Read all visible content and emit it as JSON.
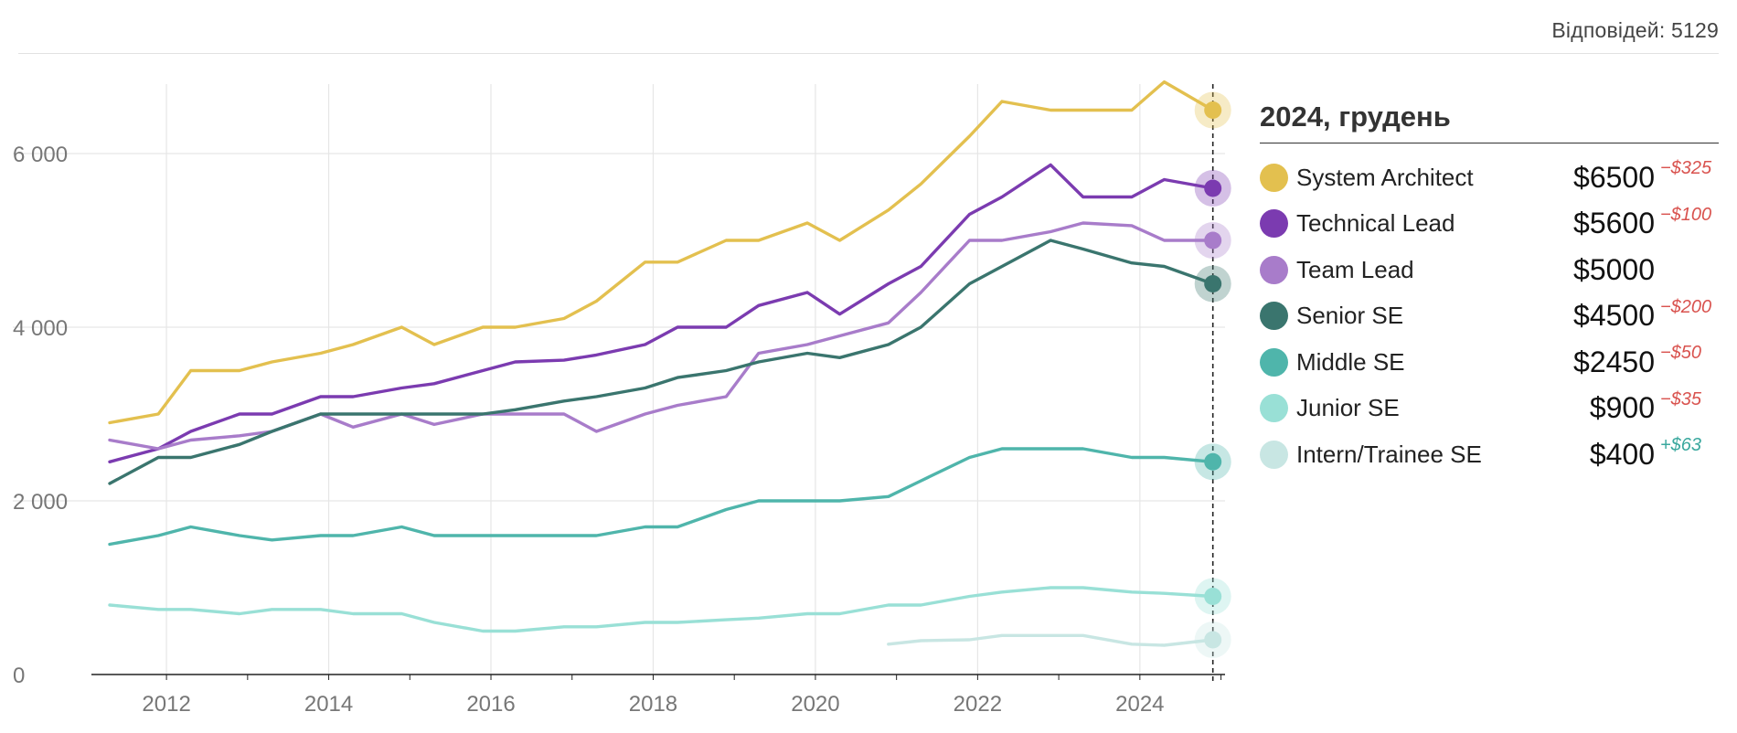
{
  "header": {
    "responses": "Відповідей: 5129"
  },
  "legend": {
    "title": "2024, грудень",
    "items": [
      {
        "name": "System Architect",
        "value": "$6500",
        "delta": "−$325",
        "color": "#e3c04f",
        "delta_color": "#d9534f"
      },
      {
        "name": "Technical Lead",
        "value": "$5600",
        "delta": "−$100",
        "color": "#7b3bb0",
        "delta_color": "#d9534f"
      },
      {
        "name": "Team Lead",
        "value": "$5000",
        "delta": "",
        "color": "#a87cca",
        "delta_color": "#d9534f"
      },
      {
        "name": "Senior SE",
        "value": "$4500",
        "delta": "−$200",
        "color": "#3a756e",
        "delta_color": "#d9534f"
      },
      {
        "name": "Middle SE",
        "value": "$2450",
        "delta": "−$50",
        "color": "#4fb5ab",
        "delta_color": "#d9534f"
      },
      {
        "name": "Junior SE",
        "value": "$900",
        "delta": "−$35",
        "color": "#99e0d6",
        "delta_color": "#d9534f"
      },
      {
        "name": "Intern/Trainee SE",
        "value": "$400",
        "delta": "+$63",
        "color": "#c8e6e3",
        "delta_color": "#3aa89e"
      }
    ]
  },
  "chart_data": {
    "type": "line",
    "title": "",
    "xlabel": "",
    "ylabel": "",
    "xlim": [
      2011.3,
      2025.05
    ],
    "ylim": [
      0,
      6800
    ],
    "x_ticks": [
      2012,
      2014,
      2016,
      2018,
      2020,
      2022,
      2024
    ],
    "x_tick_labels": [
      "2012",
      "2014",
      "2016",
      "2018",
      "2020",
      "2022",
      "2024"
    ],
    "y_ticks": [
      0,
      2000,
      4000,
      6000
    ],
    "y_tick_labels": [
      "0",
      "2 000",
      "4 000",
      "6 000"
    ],
    "grid": true,
    "legend_position": "right",
    "marker_x": 2024.9,
    "series": [
      {
        "name": "System Architect",
        "color": "#e3c04f",
        "x": [
          2011.3,
          2011.9,
          2012.3,
          2012.9,
          2013.3,
          2013.9,
          2014.3,
          2014.9,
          2015.3,
          2015.9,
          2016.3,
          2016.9,
          2017.3,
          2017.9,
          2018.3,
          2018.9,
          2019.3,
          2019.9,
          2020.3,
          2020.9,
          2021.3,
          2021.9,
          2022.3,
          2022.9,
          2023.3,
          2023.9,
          2024.3,
          2024.9
        ],
        "values": [
          2900,
          3000,
          3500,
          3500,
          3600,
          3700,
          3800,
          4000,
          3800,
          4000,
          4000,
          4100,
          4300,
          4750,
          4750,
          5000,
          5000,
          5200,
          5000,
          5350,
          5650,
          6200,
          6600,
          6500,
          6500,
          6500,
          6825,
          6500
        ]
      },
      {
        "name": "Technical Lead",
        "color": "#7b3bb0",
        "x": [
          2011.3,
          2011.9,
          2012.3,
          2012.9,
          2013.3,
          2013.9,
          2014.3,
          2014.9,
          2015.3,
          2015.9,
          2016.3,
          2016.9,
          2017.3,
          2017.9,
          2018.3,
          2018.9,
          2019.3,
          2019.9,
          2020.3,
          2020.9,
          2021.3,
          2021.9,
          2022.3,
          2022.9,
          2023.3,
          2023.9,
          2024.3,
          2024.9
        ],
        "values": [
          2450,
          2600,
          2800,
          3000,
          3000,
          3200,
          3200,
          3300,
          3350,
          3500,
          3600,
          3620,
          3680,
          3800,
          4000,
          4000,
          4250,
          4400,
          4150,
          4500,
          4700,
          5300,
          5500,
          5870,
          5500,
          5500,
          5700,
          5600
        ]
      },
      {
        "name": "Team Lead",
        "color": "#a87cca",
        "x": [
          2011.3,
          2011.9,
          2012.3,
          2012.9,
          2013.3,
          2013.9,
          2014.3,
          2014.9,
          2015.3,
          2015.9,
          2016.3,
          2016.9,
          2017.3,
          2017.9,
          2018.3,
          2018.9,
          2019.3,
          2019.9,
          2020.3,
          2020.9,
          2021.3,
          2021.9,
          2022.3,
          2022.9,
          2023.3,
          2023.9,
          2024.3,
          2024.9
        ],
        "values": [
          2700,
          2600,
          2700,
          2750,
          2800,
          3000,
          2850,
          3000,
          2880,
          3000,
          3000,
          3000,
          2800,
          3000,
          3100,
          3200,
          3700,
          3800,
          3900,
          4050,
          4400,
          5000,
          5000,
          5100,
          5200,
          5170,
          5000,
          5000
        ]
      },
      {
        "name": "Senior SE",
        "color": "#3a756e",
        "x": [
          2011.3,
          2011.9,
          2012.3,
          2012.9,
          2013.3,
          2013.9,
          2014.3,
          2014.9,
          2015.3,
          2015.9,
          2016.3,
          2016.9,
          2017.3,
          2017.9,
          2018.3,
          2018.9,
          2019.3,
          2019.9,
          2020.3,
          2020.9,
          2021.3,
          2021.9,
          2022.3,
          2022.9,
          2023.3,
          2023.9,
          2024.3,
          2024.9
        ],
        "values": [
          2200,
          2500,
          2500,
          2650,
          2800,
          3000,
          3000,
          3000,
          3000,
          3000,
          3050,
          3150,
          3200,
          3300,
          3420,
          3500,
          3600,
          3700,
          3650,
          3800,
          4000,
          4500,
          4700,
          5000,
          4900,
          4740,
          4700,
          4500
        ]
      },
      {
        "name": "Middle SE",
        "color": "#4fb5ab",
        "x": [
          2011.3,
          2011.9,
          2012.3,
          2012.9,
          2013.3,
          2013.9,
          2014.3,
          2014.9,
          2015.3,
          2015.9,
          2016.3,
          2016.9,
          2017.3,
          2017.9,
          2018.3,
          2018.9,
          2019.3,
          2019.9,
          2020.3,
          2020.9,
          2021.3,
          2021.9,
          2022.3,
          2022.9,
          2023.3,
          2023.9,
          2024.3,
          2024.9
        ],
        "values": [
          1500,
          1600,
          1700,
          1600,
          1550,
          1600,
          1600,
          1700,
          1600,
          1600,
          1600,
          1600,
          1600,
          1700,
          1700,
          1900,
          2000,
          2000,
          2000,
          2050,
          2230,
          2500,
          2600,
          2600,
          2600,
          2500,
          2500,
          2450
        ]
      },
      {
        "name": "Junior SE",
        "color": "#99e0d6",
        "x": [
          2011.3,
          2011.9,
          2012.3,
          2012.9,
          2013.3,
          2013.9,
          2014.3,
          2014.9,
          2015.3,
          2015.9,
          2016.3,
          2016.9,
          2017.3,
          2017.9,
          2018.3,
          2018.9,
          2019.3,
          2019.9,
          2020.3,
          2020.9,
          2021.3,
          2021.9,
          2022.3,
          2022.9,
          2023.3,
          2023.9,
          2024.3,
          2024.9
        ],
        "values": [
          800,
          750,
          750,
          700,
          750,
          750,
          700,
          700,
          600,
          500,
          500,
          550,
          550,
          600,
          600,
          630,
          650,
          700,
          700,
          800,
          800,
          900,
          950,
          1000,
          1000,
          950,
          935,
          900
        ]
      },
      {
        "name": "Intern/Trainee SE",
        "color": "#c8e6e3",
        "x": [
          2020.9,
          2021.3,
          2021.9,
          2022.3,
          2022.9,
          2023.3,
          2023.9,
          2024.3,
          2024.9
        ],
        "values": [
          350,
          390,
          400,
          450,
          450,
          450,
          350,
          337,
          400
        ]
      }
    ]
  }
}
